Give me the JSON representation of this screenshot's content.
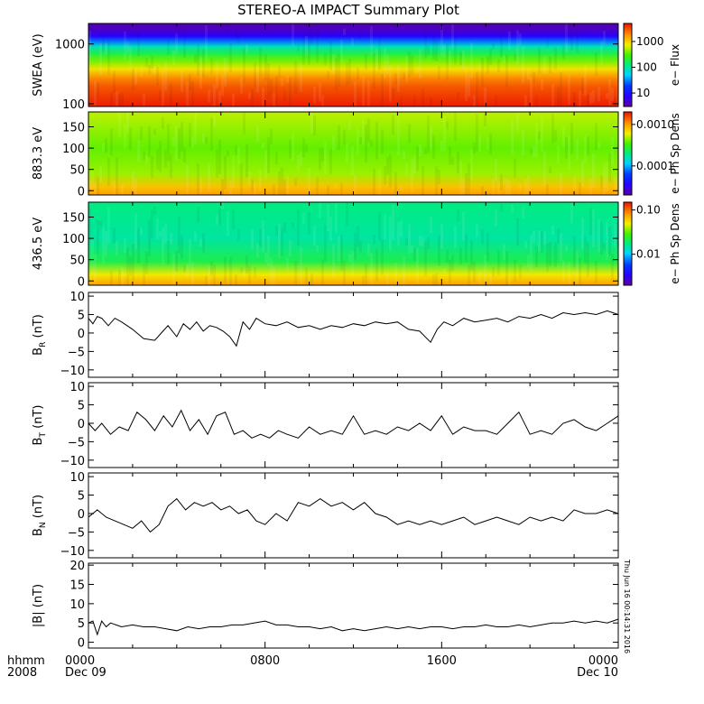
{
  "title": "STEREO-A IMPACT Summary Plot",
  "timestamp": "Thu Jun 16 00:14:31 2016",
  "x_axis": {
    "corner_label": [
      "hhmm",
      "2008"
    ],
    "ticks": [
      {
        "t": 0,
        "lines": [
          "0000",
          "Dec 09"
        ]
      },
      {
        "t": 8,
        "lines": [
          "0800"
        ]
      },
      {
        "t": 16,
        "lines": [
          "1600"
        ]
      },
      {
        "t": 24,
        "lines": [
          "0000",
          "Dec 10"
        ]
      }
    ]
  },
  "chart_data": [
    {
      "type": "heatmap",
      "id": "swea",
      "ylabel": "SWEA (eV)",
      "yscale": "log",
      "ylim": [
        90,
        2200
      ],
      "yticks": [
        {
          "v": 100,
          "label": "100"
        },
        {
          "v": 1000,
          "label": "1000"
        }
      ],
      "colorbar": {
        "label": "e− Flux",
        "scale": "log",
        "range": [
          3,
          5000
        ],
        "ticks": [
          {
            "v": 10,
            "label": "10"
          },
          {
            "v": 100,
            "label": "100"
          },
          {
            "v": 1000,
            "label": "1000"
          }
        ]
      },
      "profile": [
        {
          "y": 2200,
          "c": 0.02
        },
        {
          "y": 1700,
          "c": 0.05
        },
        {
          "y": 1350,
          "c": 0.12
        },
        {
          "y": 1100,
          "c": 0.3
        },
        {
          "y": 900,
          "c": 0.45
        },
        {
          "y": 700,
          "c": 0.55
        },
        {
          "y": 520,
          "c": 0.65
        },
        {
          "y": 380,
          "c": 0.76
        },
        {
          "y": 260,
          "c": 0.88
        },
        {
          "y": 190,
          "c": 0.93
        },
        {
          "y": 130,
          "c": 0.96
        },
        {
          "y": 90,
          "c": 0.99
        }
      ]
    },
    {
      "type": "heatmap",
      "id": "pad883",
      "ylabel": "883.3 eV",
      "ylim": [
        -10,
        185
      ],
      "yticks": [
        {
          "v": 0,
          "label": "0"
        },
        {
          "v": 50,
          "label": "50"
        },
        {
          "v": 100,
          "label": "100"
        },
        {
          "v": 150,
          "label": "150"
        }
      ],
      "colorbar": {
        "label": "e− Ph Sp Dens",
        "scale": "log",
        "range": [
          2e-05,
          0.002
        ],
        "ticks": [
          {
            "v": 0.0001,
            "label": "0.0001"
          },
          {
            "v": 0.001,
            "label": "0.0010"
          }
        ]
      },
      "profile": [
        {
          "y": 180,
          "c": 0.7
        },
        {
          "y": 100,
          "c": 0.64
        },
        {
          "y": 40,
          "c": 0.68
        },
        {
          "y": 10,
          "c": 0.8
        },
        {
          "y": -10,
          "c": 0.85
        }
      ]
    },
    {
      "type": "heatmap",
      "id": "pad436",
      "ylabel": "436.5 eV",
      "ylim": [
        -10,
        185
      ],
      "yticks": [
        {
          "v": 0,
          "label": "0"
        },
        {
          "v": 50,
          "label": "50"
        },
        {
          "v": 100,
          "label": "100"
        },
        {
          "v": 150,
          "label": "150"
        }
      ],
      "colorbar": {
        "label": "e− Ph Sp Dens",
        "scale": "log",
        "range": [
          0.002,
          0.15
        ],
        "ticks": [
          {
            "v": 0.01,
            "label": "0.01"
          },
          {
            "v": 0.1,
            "label": "0.10"
          }
        ]
      },
      "profile": [
        {
          "y": 180,
          "c": 0.5
        },
        {
          "y": 100,
          "c": 0.47
        },
        {
          "y": 45,
          "c": 0.55
        },
        {
          "y": 15,
          "c": 0.75
        },
        {
          "y": -10,
          "c": 0.85
        }
      ]
    },
    {
      "type": "line",
      "id": "br",
      "ylabel": "B",
      "ylabel_sub": "R",
      "ylabel_unit": "(nT)",
      "ylim": [
        -12,
        11
      ],
      "yticks": [
        {
          "v": -10,
          "label": "−10"
        },
        {
          "v": -5,
          "label": "−5"
        },
        {
          "v": 0,
          "label": "0"
        },
        {
          "v": 5,
          "label": "5"
        },
        {
          "v": 10,
          "label": "10"
        }
      ],
      "x": [
        0,
        0.2,
        0.4,
        0.6,
        0.9,
        1.2,
        1.5,
        2,
        2.5,
        3,
        3.3,
        3.6,
        4,
        4.3,
        4.6,
        4.9,
        5.2,
        5.5,
        5.8,
        6.1,
        6.4,
        6.7,
        7,
        7.3,
        7.6,
        8,
        8.5,
        9,
        9.5,
        10,
        10.5,
        11,
        11.5,
        12,
        12.5,
        13,
        13.5,
        14,
        14.5,
        15,
        15.5,
        15.8,
        16.1,
        16.5,
        17,
        17.5,
        18,
        18.5,
        19,
        19.5,
        20,
        20.5,
        21,
        21.5,
        22,
        22.5,
        23,
        23.5,
        24
      ],
      "y": [
        4,
        2.5,
        4.5,
        4,
        2,
        4,
        3,
        1,
        -1.5,
        -2,
        0,
        2,
        -1,
        2.5,
        1,
        3,
        0.5,
        2,
        1.5,
        0.5,
        -1,
        -3.5,
        3,
        1,
        4,
        2.5,
        2,
        3,
        1.5,
        2,
        1,
        2,
        1.5,
        2.5,
        2,
        3,
        2.5,
        3,
        1,
        0.5,
        -2.5,
        1,
        3,
        2,
        4,
        3,
        3.5,
        4,
        3,
        4.5,
        4,
        5,
        4,
        5.5,
        5,
        5.5,
        5,
        6,
        5
      ]
    },
    {
      "type": "line",
      "id": "bt",
      "ylabel": "B",
      "ylabel_sub": "T",
      "ylabel_unit": "(nT)",
      "ylim": [
        -12,
        11
      ],
      "yticks": [
        {
          "v": -10,
          "label": "−10"
        },
        {
          "v": -5,
          "label": "−5"
        },
        {
          "v": 0,
          "label": "0"
        },
        {
          "v": 5,
          "label": "5"
        },
        {
          "v": 10,
          "label": "10"
        }
      ],
      "x": [
        0,
        0.3,
        0.6,
        1,
        1.4,
        1.8,
        2.2,
        2.6,
        3,
        3.4,
        3.8,
        4.2,
        4.6,
        5,
        5.4,
        5.8,
        6.2,
        6.6,
        7,
        7.4,
        7.8,
        8.2,
        8.6,
        9,
        9.5,
        10,
        10.5,
        11,
        11.5,
        12,
        12.5,
        13,
        13.5,
        14,
        14.5,
        15,
        15.5,
        16,
        16.5,
        17,
        17.5,
        18,
        18.5,
        19,
        19.5,
        20,
        20.5,
        21,
        21.5,
        22,
        22.5,
        23,
        23.5,
        24
      ],
      "y": [
        0,
        -2,
        0,
        -3,
        -1,
        -2,
        3,
        1,
        -2,
        2,
        -1,
        3.5,
        -2,
        1,
        -3,
        2,
        3,
        -3,
        -2,
        -4,
        -3,
        -4,
        -2,
        -3,
        -4,
        -1,
        -3,
        -2,
        -3,
        2,
        -3,
        -2,
        -3,
        -1,
        -2,
        0,
        -2,
        2,
        -3,
        -1,
        -2,
        -2,
        -3,
        0,
        3,
        -3,
        -2,
        -3,
        0,
        1,
        -1,
        -2,
        0,
        2
      ]
    },
    {
      "type": "line",
      "id": "bn",
      "ylabel": "B",
      "ylabel_sub": "N",
      "ylabel_unit": "(nT)",
      "ylim": [
        -12,
        11
      ],
      "yticks": [
        {
          "v": -10,
          "label": "−10"
        },
        {
          "v": -5,
          "label": "−5"
        },
        {
          "v": 0,
          "label": "0"
        },
        {
          "v": 5,
          "label": "5"
        },
        {
          "v": 10,
          "label": "10"
        }
      ],
      "x": [
        0,
        0.4,
        0.8,
        1.2,
        1.6,
        2,
        2.4,
        2.8,
        3.2,
        3.6,
        4,
        4.4,
        4.8,
        5.2,
        5.6,
        6,
        6.4,
        6.8,
        7.2,
        7.6,
        8,
        8.5,
        9,
        9.5,
        10,
        10.5,
        11,
        11.5,
        12,
        12.5,
        13,
        13.5,
        14,
        14.5,
        15,
        15.5,
        16,
        16.5,
        17,
        17.5,
        18,
        18.5,
        19,
        19.5,
        20,
        20.5,
        21,
        21.5,
        22,
        22.5,
        23,
        23.5,
        24
      ],
      "y": [
        -1,
        1,
        -1,
        -2,
        -3,
        -4,
        -2,
        -5,
        -3,
        2,
        4,
        1,
        3,
        2,
        3,
        1,
        2,
        0,
        1,
        -2,
        -3,
        0,
        -2,
        3,
        2,
        4,
        2,
        3,
        1,
        3,
        0,
        -1,
        -3,
        -2,
        -3,
        -2,
        -3,
        -2,
        -1,
        -3,
        -2,
        -1,
        -2,
        -3,
        -1,
        -2,
        -1,
        -2,
        1,
        0,
        0,
        1,
        0
      ]
    },
    {
      "type": "line",
      "id": "bmag",
      "ylabel": "|B|",
      "ylabel_unit": "(nT)",
      "ylim": [
        -1.5,
        20.5
      ],
      "yticks": [
        {
          "v": 0,
          "label": "0"
        },
        {
          "v": 5,
          "label": "5"
        },
        {
          "v": 10,
          "label": "10"
        },
        {
          "v": 15,
          "label": "15"
        },
        {
          "v": 20,
          "label": "20"
        }
      ],
      "x": [
        0,
        0.2,
        0.4,
        0.6,
        0.8,
        1,
        1.5,
        2,
        2.5,
        3,
        3.5,
        4,
        4.5,
        5,
        5.5,
        6,
        6.5,
        7,
        7.5,
        8,
        8.5,
        9,
        9.5,
        10,
        10.5,
        11,
        11.5,
        12,
        12.5,
        13,
        13.5,
        14,
        14.5,
        15,
        15.5,
        16,
        16.5,
        17,
        17.5,
        18,
        18.5,
        19,
        19.5,
        20,
        20.5,
        21,
        21.5,
        22,
        22.5,
        23,
        23.5,
        24
      ],
      "y": [
        5,
        5.5,
        2,
        5.5,
        4,
        5,
        4,
        4.5,
        4,
        4,
        3.5,
        3,
        4,
        3.5,
        4,
        4,
        4.5,
        4.5,
        5,
        5.5,
        4.5,
        4.5,
        4,
        4,
        3.5,
        4,
        3,
        3.5,
        3,
        3.5,
        4,
        3.5,
        4,
        3.5,
        4,
        4,
        3.5,
        4,
        4,
        4.5,
        4,
        4,
        4.5,
        4,
        4.5,
        5,
        5,
        5.5,
        5,
        5.5,
        5,
        6
      ]
    }
  ]
}
